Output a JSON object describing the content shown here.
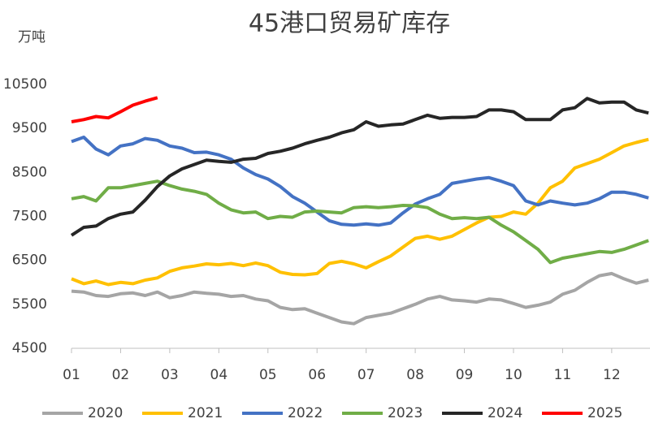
{
  "chart_data": {
    "type": "line",
    "title": "45港口贸易矿库存",
    "y_unit": "万吨",
    "x": [
      1,
      1.25,
      1.5,
      1.75,
      2,
      2.25,
      2.5,
      2.75,
      3,
      3.25,
      3.5,
      3.75,
      4,
      4.25,
      4.5,
      4.75,
      5,
      5.25,
      5.5,
      5.75,
      6,
      6.25,
      6.5,
      6.75,
      7,
      7.25,
      7.5,
      7.75,
      8,
      8.25,
      8.5,
      8.75,
      9,
      9.25,
      9.5,
      9.75,
      10,
      10.25,
      10.5,
      10.75,
      11,
      11.25,
      11.5,
      11.75,
      12,
      12.25,
      12.5,
      12.75
    ],
    "xlim": [
      1,
      12.78
    ],
    "xticks": [
      {
        "value": 1,
        "label": "01"
      },
      {
        "value": 2,
        "label": "02"
      },
      {
        "value": 3,
        "label": "03"
      },
      {
        "value": 4,
        "label": "04"
      },
      {
        "value": 5,
        "label": "05"
      },
      {
        "value": 6,
        "label": "06"
      },
      {
        "value": 7,
        "label": "07"
      },
      {
        "value": 8,
        "label": "08"
      },
      {
        "value": 9,
        "label": "09"
      },
      {
        "value": 10,
        "label": "10"
      },
      {
        "value": 11,
        "label": "11"
      },
      {
        "value": 12,
        "label": "12"
      }
    ],
    "ylim": [
      4500,
      10500
    ],
    "yticks": [
      4500,
      5500,
      6500,
      7500,
      8500,
      9500,
      10500
    ],
    "grid": false,
    "legend": "bottom",
    "series": [
      {
        "name": "2020",
        "color": "#a5a5a5",
        "values": [
          5800,
          5780,
          5700,
          5680,
          5740,
          5760,
          5700,
          5780,
          5650,
          5700,
          5780,
          5750,
          5730,
          5680,
          5700,
          5620,
          5580,
          5430,
          5380,
          5400,
          5300,
          5200,
          5100,
          5060,
          5200,
          5250,
          5300,
          5400,
          5500,
          5620,
          5680,
          5600,
          5580,
          5550,
          5620,
          5600,
          5520,
          5430,
          5480,
          5550,
          5730,
          5820,
          6000,
          6150,
          6200,
          6080,
          5980,
          6050
        ]
      },
      {
        "name": "2021",
        "color": "#ffc000",
        "values": [
          6080,
          5970,
          6030,
          5950,
          6000,
          5970,
          6050,
          6100,
          6250,
          6330,
          6370,
          6420,
          6400,
          6430,
          6380,
          6440,
          6380,
          6230,
          6180,
          6170,
          6200,
          6430,
          6480,
          6420,
          6330,
          6470,
          6600,
          6800,
          7000,
          7050,
          6980,
          7050,
          7200,
          7350,
          7480,
          7500,
          7600,
          7550,
          7800,
          8150,
          8300,
          8600,
          8700,
          8800,
          8950,
          9100,
          9180,
          9250
        ]
      },
      {
        "name": "2022",
        "color": "#4472c4",
        "values": [
          9200,
          9300,
          9030,
          8900,
          9100,
          9150,
          9270,
          9230,
          9100,
          9050,
          8950,
          8960,
          8900,
          8800,
          8600,
          8450,
          8350,
          8180,
          7950,
          7800,
          7600,
          7400,
          7320,
          7300,
          7330,
          7300,
          7350,
          7580,
          7780,
          7900,
          8000,
          8250,
          8300,
          8350,
          8380,
          8300,
          8200,
          7850,
          7760,
          7850,
          7800,
          7760,
          7800,
          7900,
          8050,
          8050,
          8000,
          7920
        ]
      },
      {
        "name": "2023",
        "color": "#70ad47",
        "values": [
          7900,
          7950,
          7850,
          8150,
          8150,
          8200,
          8250,
          8300,
          8200,
          8120,
          8070,
          8000,
          7800,
          7650,
          7580,
          7600,
          7450,
          7500,
          7480,
          7600,
          7620,
          7600,
          7580,
          7700,
          7720,
          7700,
          7720,
          7750,
          7740,
          7700,
          7550,
          7450,
          7470,
          7450,
          7480,
          7300,
          7150,
          6950,
          6750,
          6450,
          6550,
          6600,
          6650,
          6700,
          6680,
          6750,
          6850,
          6950
        ]
      },
      {
        "name": "2024",
        "color": "#262626",
        "values": [
          7070,
          7250,
          7280,
          7450,
          7550,
          7600,
          7870,
          8180,
          8420,
          8580,
          8680,
          8780,
          8750,
          8730,
          8800,
          8820,
          8930,
          8980,
          9050,
          9150,
          9230,
          9300,
          9400,
          9470,
          9650,
          9550,
          9580,
          9600,
          9700,
          9800,
          9730,
          9750,
          9750,
          9770,
          9920,
          9920,
          9880,
          9700,
          9700,
          9700,
          9920,
          9970,
          10180,
          10080,
          10100,
          10100,
          9920,
          9850
        ]
      },
      {
        "name": "2025",
        "color": "#ff0000",
        "values": [
          9650,
          9700,
          9770,
          9740,
          9880,
          10030,
          10120,
          10200,
          null,
          null,
          null,
          null,
          null,
          null,
          null,
          null,
          null,
          null,
          null,
          null,
          null,
          null,
          null,
          null,
          null,
          null,
          null,
          null,
          null,
          null,
          null,
          null,
          null,
          null,
          null,
          null,
          null,
          null,
          null,
          null,
          null,
          null,
          null,
          null,
          null,
          null,
          null,
          null
        ]
      }
    ]
  }
}
